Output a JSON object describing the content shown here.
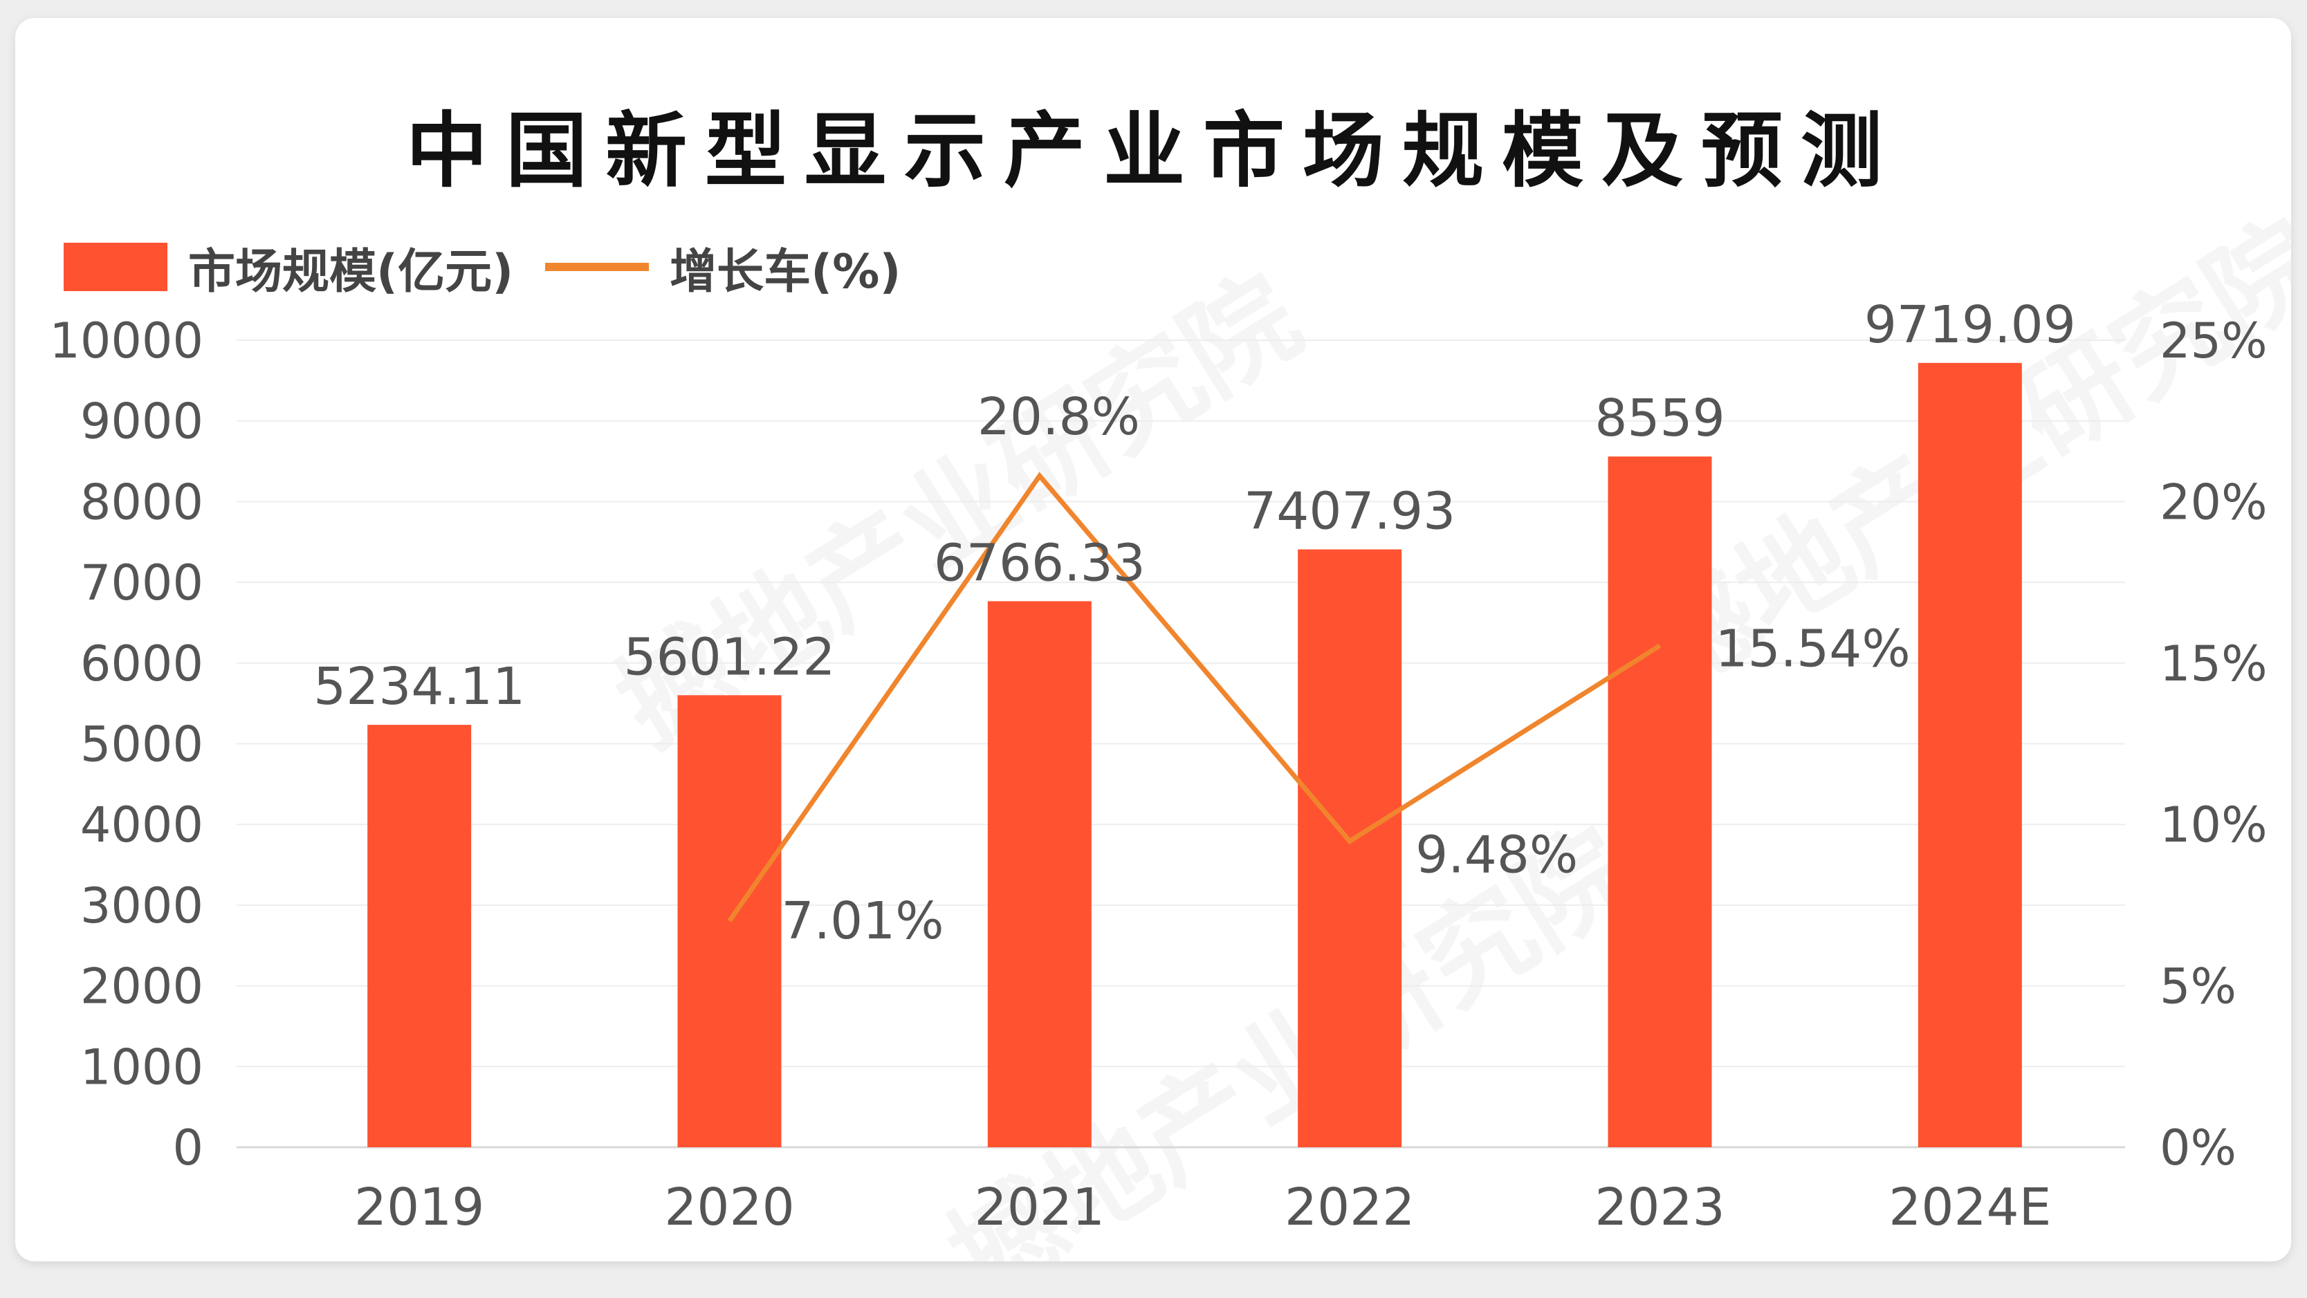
{
  "chart_data": {
    "type": "bar",
    "title": "中国新型显示产业市场规模及预测",
    "categories": [
      "2019",
      "2020",
      "2021",
      "2022",
      "2023",
      "2024E"
    ],
    "series": [
      {
        "name": "市场规模(亿元)",
        "type": "bar",
        "axis": "left",
        "values": [
          5234.11,
          5601.22,
          6766.33,
          7407.93,
          8559,
          9719.09
        ],
        "labels": [
          "5234.11",
          "5601.22",
          "6766.33",
          "7407.93",
          "8559",
          "9719.09"
        ],
        "color": "#ff5230"
      },
      {
        "name": "增长车(%)",
        "type": "line",
        "axis": "right",
        "values": [
          null,
          7.01,
          20.8,
          9.48,
          15.54,
          null
        ],
        "labels": [
          "",
          "7.01%",
          "20.8%",
          "9.48%",
          "15.54%",
          ""
        ],
        "color": "#f0852d"
      }
    ],
    "y_left": {
      "min": 0,
      "max": 10000,
      "ticks": [
        "0",
        "1000",
        "2000",
        "3000",
        "4000",
        "5000",
        "6000",
        "7000",
        "8000",
        "9000",
        "10000"
      ]
    },
    "y_right": {
      "min": 0,
      "max": 25,
      "ticks": [
        "0%",
        "5%",
        "10%",
        "15%",
        "20%",
        "25%"
      ]
    },
    "grid": true,
    "legend_position": "top-left"
  },
  "watermark": {
    "text": "撼地产业研究院"
  }
}
